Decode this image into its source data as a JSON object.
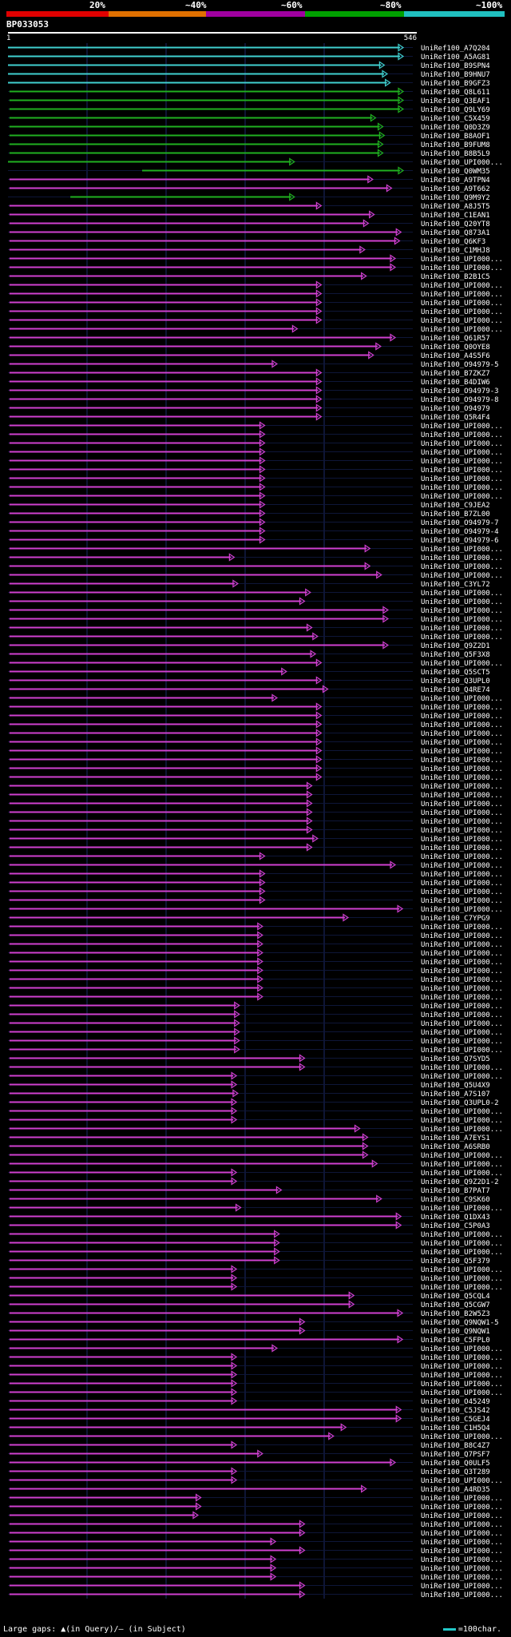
{
  "query_id": "BP033053",
  "ruler": {
    "start": "1",
    "end": "546"
  },
  "scale_labels": [
    "20%",
    "~40%",
    "~60%",
    "~80%",
    "~100%"
  ],
  "scale_colors": [
    "#e00000",
    "#e07000",
    "#a000a0",
    "#00a000",
    "#20c0c0"
  ],
  "max_length": 546,
  "colors": {
    "cyan": "#40d0d0",
    "green": "#20b020",
    "magenta": "#d040d0",
    "grid": "#1c2a6a"
  },
  "footer": {
    "gaps_text": "Large gaps: ▲(in Query)/– (in Subject)",
    "scale_text": "=100char."
  },
  "hits": [
    {
      "name": "UniRef100_A7Q204",
      "start": 1,
      "end": 546,
      "identity": "~100%"
    },
    {
      "name": "UniRef100_A5AG81",
      "start": 1,
      "end": 546,
      "identity": "~100%"
    },
    {
      "name": "UniRef100_B9SPN4",
      "start": 1,
      "end": 520,
      "identity": "~100%"
    },
    {
      "name": "UniRef100_B9HNU7",
      "start": 1,
      "end": 524,
      "identity": "~100%"
    },
    {
      "name": "UniRef100_B9GFZ3",
      "start": 1,
      "end": 528,
      "identity": "~100%"
    },
    {
      "name": "UniRef100_Q8L611",
      "start": 3,
      "end": 546,
      "identity": "~80%"
    },
    {
      "name": "UniRef100_Q3EAF1",
      "start": 3,
      "end": 546,
      "identity": "~80%"
    },
    {
      "name": "UniRef100_Q9LY69",
      "start": 3,
      "end": 546,
      "identity": "~80%"
    },
    {
      "name": "UniRef100_C5X459",
      "start": 3,
      "end": 508,
      "identity": "~80%"
    },
    {
      "name": "UniRef100_Q0D3Z9",
      "start": 3,
      "end": 518,
      "identity": "~80%"
    },
    {
      "name": "UniRef100_B8AOF1",
      "start": 3,
      "end": 520,
      "identity": "~80%"
    },
    {
      "name": "UniRef100_B9FUM8",
      "start": 3,
      "end": 518,
      "identity": "~80%"
    },
    {
      "name": "UniRef100_B8B5L9",
      "start": 3,
      "end": 518,
      "identity": "~80%"
    },
    {
      "name": "UniRef100_UPI000...",
      "start": 1,
      "end": 396,
      "identity": "~80%"
    },
    {
      "name": "UniRef100_Q0WM35",
      "start": 186,
      "end": 546,
      "identity": "~80%"
    },
    {
      "name": "UniRef100_A9TPN4",
      "start": 3,
      "end": 504,
      "identity": "~60%"
    },
    {
      "name": "UniRef100_A9T662",
      "start": 3,
      "end": 530,
      "identity": "~60%"
    },
    {
      "name": "UniRef100_Q9M9Y2",
      "start": 87,
      "end": 396,
      "identity": "~80%"
    },
    {
      "name": "UniRef100_A8J5T5",
      "start": 3,
      "end": 433,
      "identity": "~60%"
    },
    {
      "name": "UniRef100_C1EAN1",
      "start": 3,
      "end": 506,
      "identity": "~60%"
    },
    {
      "name": "UniRef100_Q20YT8",
      "start": 3,
      "end": 498,
      "identity": "~60%"
    },
    {
      "name": "UniRef100_Q873A1",
      "start": 3,
      "end": 543,
      "identity": "~60%"
    },
    {
      "name": "UniRef100_Q6KF3",
      "start": 3,
      "end": 541,
      "identity": "~60%"
    },
    {
      "name": "UniRef100_C1MHJ8",
      "start": 3,
      "end": 493,
      "identity": "~60%"
    },
    {
      "name": "UniRef100_UPI000...",
      "start": 3,
      "end": 535,
      "identity": "~60%"
    },
    {
      "name": "UniRef100_UPI000...",
      "start": 3,
      "end": 535,
      "identity": "~60%"
    },
    {
      "name": "UniRef100_B2B1C5",
      "start": 3,
      "end": 495,
      "identity": "~60%"
    },
    {
      "name": "UniRef100_UPI000...",
      "start": 3,
      "end": 433,
      "identity": "~60%"
    },
    {
      "name": "UniRef100_UPI000...",
      "start": 3,
      "end": 433,
      "identity": "~60%"
    },
    {
      "name": "UniRef100_UPI000...",
      "start": 3,
      "end": 433,
      "identity": "~60%"
    },
    {
      "name": "UniRef100_UPI000...",
      "start": 3,
      "end": 433,
      "identity": "~60%"
    },
    {
      "name": "UniRef100_UPI000...",
      "start": 3,
      "end": 433,
      "identity": "~60%"
    },
    {
      "name": "UniRef100_UPI000...",
      "start": 3,
      "end": 400,
      "identity": "~60%"
    },
    {
      "name": "UniRef100_Q61R57",
      "start": 3,
      "end": 535,
      "identity": "~60%"
    },
    {
      "name": "UniRef100_Q0OYE8",
      "start": 3,
      "end": 515,
      "identity": "~60%"
    },
    {
      "name": "UniRef100_A4S5F6",
      "start": 3,
      "end": 505,
      "identity": "~60%"
    },
    {
      "name": "UniRef100_O94979-5",
      "start": 3,
      "end": 372,
      "identity": "~60%"
    },
    {
      "name": "UniRef100_B7ZKZ7",
      "start": 3,
      "end": 433,
      "identity": "~60%"
    },
    {
      "name": "UniRef100_B4DIW6",
      "start": 3,
      "end": 433,
      "identity": "~60%"
    },
    {
      "name": "UniRef100_O94979-3",
      "start": 3,
      "end": 433,
      "identity": "~60%"
    },
    {
      "name": "UniRef100_O94979-8",
      "start": 3,
      "end": 433,
      "identity": "~60%"
    },
    {
      "name": "UniRef100_O94979",
      "start": 3,
      "end": 433,
      "identity": "~60%"
    },
    {
      "name": "UniRef100_Q5R4F4",
      "start": 3,
      "end": 433,
      "identity": "~60%"
    },
    {
      "name": "UniRef100_UPI000...",
      "start": 3,
      "end": 355,
      "identity": "~60%"
    },
    {
      "name": "UniRef100_UPI000...",
      "start": 3,
      "end": 355,
      "identity": "~60%"
    },
    {
      "name": "UniRef100_UPI000...",
      "start": 3,
      "end": 355,
      "identity": "~60%"
    },
    {
      "name": "UniRef100_UPI000...",
      "start": 3,
      "end": 355,
      "identity": "~60%"
    },
    {
      "name": "UniRef100_UPI000...",
      "start": 3,
      "end": 355,
      "identity": "~60%"
    },
    {
      "name": "UniRef100_UPI000...",
      "start": 3,
      "end": 355,
      "identity": "~60%"
    },
    {
      "name": "UniRef100_UPI000...",
      "start": 3,
      "end": 355,
      "identity": "~60%"
    },
    {
      "name": "UniRef100_UPI000...",
      "start": 3,
      "end": 355,
      "identity": "~60%"
    },
    {
      "name": "UniRef100_UPI000...",
      "start": 3,
      "end": 355,
      "identity": "~60%"
    },
    {
      "name": "UniRef100_C9JEA2",
      "start": 3,
      "end": 355,
      "identity": "~60%"
    },
    {
      "name": "UniRef100_B7ZL00",
      "start": 3,
      "end": 355,
      "identity": "~60%"
    },
    {
      "name": "UniRef100_O94979-7",
      "start": 3,
      "end": 355,
      "identity": "~60%"
    },
    {
      "name": "UniRef100_O94979-4",
      "start": 3,
      "end": 355,
      "identity": "~60%"
    },
    {
      "name": "UniRef100_O94979-6",
      "start": 3,
      "end": 355,
      "identity": "~60%"
    },
    {
      "name": "UniRef100_UPI000...",
      "start": 3,
      "end": 500,
      "identity": "~60%"
    },
    {
      "name": "UniRef100_UPI000...",
      "start": 3,
      "end": 313,
      "identity": "~60%"
    },
    {
      "name": "UniRef100_UPI000...",
      "start": 3,
      "end": 500,
      "identity": "~60%"
    },
    {
      "name": "UniRef100_UPI000...",
      "start": 3,
      "end": 516,
      "identity": "~60%"
    },
    {
      "name": "UniRef100_C3YL72",
      "start": 3,
      "end": 318,
      "identity": "~60%"
    },
    {
      "name": "UniRef100_UPI000...",
      "start": 3,
      "end": 418,
      "identity": "~60%"
    },
    {
      "name": "UniRef100_UPI000...",
      "start": 3,
      "end": 410,
      "identity": "~60%"
    },
    {
      "name": "UniRef100_UPI000...",
      "start": 3,
      "end": 525,
      "identity": "~60%"
    },
    {
      "name": "UniRef100_UPI000...",
      "start": 3,
      "end": 525,
      "identity": "~60%"
    },
    {
      "name": "UniRef100_UPI000...",
      "start": 3,
      "end": 420,
      "identity": "~60%"
    },
    {
      "name": "UniRef100_UPI000...",
      "start": 3,
      "end": 428,
      "identity": "~60%"
    },
    {
      "name": "UniRef100_Q9Z2D1",
      "start": 3,
      "end": 525,
      "identity": "~60%"
    },
    {
      "name": "UniRef100_Q5F3X8",
      "start": 3,
      "end": 425,
      "identity": "~60%"
    },
    {
      "name": "UniRef100_UPI000...",
      "start": 3,
      "end": 433,
      "identity": "~60%"
    },
    {
      "name": "UniRef100_Q5SCT5",
      "start": 3,
      "end": 385,
      "identity": "~60%"
    },
    {
      "name": "UniRef100_Q3UPL0",
      "start": 3,
      "end": 433,
      "identity": "~60%"
    },
    {
      "name": "UniRef100_Q4RE74",
      "start": 3,
      "end": 442,
      "identity": "~60%"
    },
    {
      "name": "UniRef100_UPI000...",
      "start": 3,
      "end": 372,
      "identity": "~60%"
    },
    {
      "name": "UniRef100_UPI000...",
      "start": 3,
      "end": 433,
      "identity": "~60%"
    },
    {
      "name": "UniRef100_UPI000...",
      "start": 3,
      "end": 433,
      "identity": "~60%"
    },
    {
      "name": "UniRef100_UPI000...",
      "start": 3,
      "end": 433,
      "identity": "~60%"
    },
    {
      "name": "UniRef100_UPI000...",
      "start": 3,
      "end": 433,
      "identity": "~60%"
    },
    {
      "name": "UniRef100_UPI000...",
      "start": 3,
      "end": 433,
      "identity": "~60%"
    },
    {
      "name": "UniRef100_UPI000...",
      "start": 3,
      "end": 433,
      "identity": "~60%"
    },
    {
      "name": "UniRef100_UPI000...",
      "start": 3,
      "end": 433,
      "identity": "~60%"
    },
    {
      "name": "UniRef100_UPI000...",
      "start": 3,
      "end": 433,
      "identity": "~60%"
    },
    {
      "name": "UniRef100_UPI000...",
      "start": 3,
      "end": 433,
      "identity": "~60%"
    },
    {
      "name": "UniRef100_UPI000...",
      "start": 3,
      "end": 420,
      "identity": "~60%"
    },
    {
      "name": "UniRef100_UPI000...",
      "start": 3,
      "end": 420,
      "identity": "~60%"
    },
    {
      "name": "UniRef100_UPI000...",
      "start": 3,
      "end": 420,
      "identity": "~60%"
    },
    {
      "name": "UniRef100_UPI000...",
      "start": 3,
      "end": 420,
      "identity": "~60%"
    },
    {
      "name": "UniRef100_UPI000...",
      "start": 3,
      "end": 420,
      "identity": "~60%"
    },
    {
      "name": "UniRef100_UPI000...",
      "start": 3,
      "end": 420,
      "identity": "~60%"
    },
    {
      "name": "UniRef100_UPI000...",
      "start": 3,
      "end": 428,
      "identity": "~60%"
    },
    {
      "name": "UniRef100_UPI000...",
      "start": 3,
      "end": 420,
      "identity": "~60%"
    },
    {
      "name": "UniRef100_UPI000...",
      "start": 3,
      "end": 355,
      "identity": "~60%"
    },
    {
      "name": "UniRef100_UPI000...",
      "start": 3,
      "end": 535,
      "identity": "~60%"
    },
    {
      "name": "UniRef100_UPI000...",
      "start": 3,
      "end": 355,
      "identity": "~60%"
    },
    {
      "name": "UniRef100_UPI000...",
      "start": 3,
      "end": 355,
      "identity": "~60%"
    },
    {
      "name": "UniRef100_UPI000...",
      "start": 3,
      "end": 355,
      "identity": "~60%"
    },
    {
      "name": "UniRef100_UPI000...",
      "start": 3,
      "end": 355,
      "identity": "~60%"
    },
    {
      "name": "UniRef100_UPI000...",
      "start": 3,
      "end": 545,
      "identity": "~60%"
    },
    {
      "name": "UniRef100_C7YPG9",
      "start": 3,
      "end": 470,
      "identity": "~60%"
    },
    {
      "name": "UniRef100_UPI000...",
      "start": 3,
      "end": 352,
      "identity": "~60%"
    },
    {
      "name": "UniRef100_UPI000...",
      "start": 3,
      "end": 352,
      "identity": "~60%"
    },
    {
      "name": "UniRef100_UPI000...",
      "start": 3,
      "end": 352,
      "identity": "~60%"
    },
    {
      "name": "UniRef100_UPI000...",
      "start": 3,
      "end": 352,
      "identity": "~60%"
    },
    {
      "name": "UniRef100_UPI000...",
      "start": 3,
      "end": 352,
      "identity": "~60%"
    },
    {
      "name": "UniRef100_UPI000...",
      "start": 3,
      "end": 352,
      "identity": "~60%"
    },
    {
      "name": "UniRef100_UPI000...",
      "start": 3,
      "end": 352,
      "identity": "~60%"
    },
    {
      "name": "UniRef100_UPI000...",
      "start": 3,
      "end": 352,
      "identity": "~60%"
    },
    {
      "name": "UniRef100_UPI000...",
      "start": 3,
      "end": 352,
      "identity": "~60%"
    },
    {
      "name": "UniRef100_UPI000...",
      "start": 3,
      "end": 320,
      "identity": "~60%"
    },
    {
      "name": "UniRef100_UPI000...",
      "start": 3,
      "end": 320,
      "identity": "~60%"
    },
    {
      "name": "UniRef100_UPI000...",
      "start": 3,
      "end": 320,
      "identity": "~60%"
    },
    {
      "name": "UniRef100_UPI000...",
      "start": 3,
      "end": 320,
      "identity": "~60%"
    },
    {
      "name": "UniRef100_UPI000...",
      "start": 3,
      "end": 320,
      "identity": "~60%"
    },
    {
      "name": "UniRef100_UPI000...",
      "start": 3,
      "end": 320,
      "identity": "~60%"
    },
    {
      "name": "UniRef100_Q7SYD5",
      "start": 3,
      "end": 410,
      "identity": "~60%"
    },
    {
      "name": "UniRef100_UPI000...",
      "start": 3,
      "end": 410,
      "identity": "~60%"
    },
    {
      "name": "UniRef100_UPI000...",
      "start": 3,
      "end": 316,
      "identity": "~60%"
    },
    {
      "name": "UniRef100_Q5U4X9",
      "start": 3,
      "end": 316,
      "identity": "~60%"
    },
    {
      "name": "UniRef100_A7S107",
      "start": 3,
      "end": 318,
      "identity": "~60%"
    },
    {
      "name": "UniRef100_Q3UPL0-2",
      "start": 3,
      "end": 316,
      "identity": "~60%"
    },
    {
      "name": "UniRef100_UPI000...",
      "start": 3,
      "end": 316,
      "identity": "~60%"
    },
    {
      "name": "UniRef100_UPI000...",
      "start": 3,
      "end": 316,
      "identity": "~60%"
    },
    {
      "name": "UniRef100_UPI000...",
      "start": 3,
      "end": 486,
      "identity": "~60%"
    },
    {
      "name": "UniRef100_A7EYS1",
      "start": 3,
      "end": 497,
      "identity": "~60%"
    },
    {
      "name": "UniRef100_A6SRB0",
      "start": 3,
      "end": 497,
      "identity": "~60%"
    },
    {
      "name": "UniRef100_UPI000...",
      "start": 3,
      "end": 497,
      "identity": "~60%"
    },
    {
      "name": "UniRef100_UPI000...",
      "start": 3,
      "end": 510,
      "identity": "~60%"
    },
    {
      "name": "UniRef100_UPI000...",
      "start": 3,
      "end": 316,
      "identity": "~60%"
    },
    {
      "name": "UniRef100_Q9Z2D1-2",
      "start": 3,
      "end": 316,
      "identity": "~60%"
    },
    {
      "name": "UniRef100_B7PAT7",
      "start": 3,
      "end": 378,
      "identity": "~60%"
    },
    {
      "name": "UniRef100_C9SK60",
      "start": 3,
      "end": 516,
      "identity": "~60%"
    },
    {
      "name": "UniRef100_UPI000...",
      "start": 3,
      "end": 322,
      "identity": "~60%"
    },
    {
      "name": "UniRef100_Q1DX43",
      "start": 3,
      "end": 543,
      "identity": "~60%"
    },
    {
      "name": "UniRef100_C5P0A3",
      "start": 3,
      "end": 543,
      "identity": "~60%"
    },
    {
      "name": "UniRef100_UPI000...",
      "start": 3,
      "end": 375,
      "identity": "~60%"
    },
    {
      "name": "UniRef100_UPI000...",
      "start": 3,
      "end": 375,
      "identity": "~60%"
    },
    {
      "name": "UniRef100_UPI000...",
      "start": 3,
      "end": 375,
      "identity": "~60%"
    },
    {
      "name": "UniRef100_Q5F379",
      "start": 3,
      "end": 375,
      "identity": "~60%"
    },
    {
      "name": "UniRef100_UPI000...",
      "start": 3,
      "end": 316,
      "identity": "~60%"
    },
    {
      "name": "UniRef100_UPI000...",
      "start": 3,
      "end": 316,
      "identity": "~60%"
    },
    {
      "name": "UniRef100_UPI000...",
      "start": 3,
      "end": 316,
      "identity": "~60%"
    },
    {
      "name": "UniRef100_Q5CQL4",
      "start": 3,
      "end": 478,
      "identity": "~60%"
    },
    {
      "name": "UniRef100_Q5CGW7",
      "start": 3,
      "end": 478,
      "identity": "~60%"
    },
    {
      "name": "UniRef100_B2W5Z3",
      "start": 3,
      "end": 545,
      "identity": "~60%"
    },
    {
      "name": "UniRef100_Q9NQW1-5",
      "start": 3,
      "end": 410,
      "identity": "~60%"
    },
    {
      "name": "UniRef100_Q9NQW1",
      "start": 3,
      "end": 410,
      "identity": "~60%"
    },
    {
      "name": "UniRef100_C5FPL0",
      "start": 3,
      "end": 545,
      "identity": "~60%"
    },
    {
      "name": "UniRef100_UPI000...",
      "start": 3,
      "end": 372,
      "identity": "~60%"
    },
    {
      "name": "UniRef100_UPI000...",
      "start": 3,
      "end": 316,
      "identity": "~60%"
    },
    {
      "name": "UniRef100_UPI000...",
      "start": 3,
      "end": 316,
      "identity": "~60%"
    },
    {
      "name": "UniRef100_UPI000...",
      "start": 3,
      "end": 316,
      "identity": "~60%"
    },
    {
      "name": "UniRef100_UPI000...",
      "start": 3,
      "end": 316,
      "identity": "~60%"
    },
    {
      "name": "UniRef100_UPI000...",
      "start": 3,
      "end": 316,
      "identity": "~60%"
    },
    {
      "name": "UniRef100_O45249",
      "start": 3,
      "end": 316,
      "identity": "~60%"
    },
    {
      "name": "UniRef100_C5JS42",
      "start": 3,
      "end": 543,
      "identity": "~60%"
    },
    {
      "name": "UniRef100_C5GEJ4",
      "start": 3,
      "end": 543,
      "identity": "~60%"
    },
    {
      "name": "UniRef100_C1H5Q4",
      "start": 3,
      "end": 467,
      "identity": "~60%"
    },
    {
      "name": "UniRef100_UPI000...",
      "start": 3,
      "end": 450,
      "identity": "~60%"
    },
    {
      "name": "UniRef100_B8C4Z7",
      "start": 3,
      "end": 316,
      "identity": "~60%"
    },
    {
      "name": "UniRef100_Q7PSF7",
      "start": 3,
      "end": 352,
      "identity": "~60%"
    },
    {
      "name": "UniRef100_Q0ULF5",
      "start": 3,
      "end": 535,
      "identity": "~60%"
    },
    {
      "name": "UniRef100_Q3T289",
      "start": 3,
      "end": 316,
      "identity": "~60%"
    },
    {
      "name": "UniRef100_UPI000...",
      "start": 3,
      "end": 316,
      "identity": "~60%"
    },
    {
      "name": "UniRef100_A4RD35",
      "start": 3,
      "end": 495,
      "identity": "~60%"
    },
    {
      "name": "UniRef100_UPI000...",
      "start": 3,
      "end": 267,
      "identity": "~60%"
    },
    {
      "name": "UniRef100_UPI000...",
      "start": 3,
      "end": 267,
      "identity": "~60%"
    },
    {
      "name": "UniRef100_UPI000...",
      "start": 3,
      "end": 263,
      "identity": "~60%"
    },
    {
      "name": "UniRef100_UPI000...",
      "start": 3,
      "end": 410,
      "identity": "~60%"
    },
    {
      "name": "UniRef100_UPI000...",
      "start": 3,
      "end": 410,
      "identity": "~60%"
    },
    {
      "name": "UniRef100_UPI000...",
      "start": 3,
      "end": 370,
      "identity": "~60%"
    },
    {
      "name": "UniRef100_UPI000...",
      "start": 3,
      "end": 410,
      "identity": "~60%"
    },
    {
      "name": "UniRef100_UPI000...",
      "start": 3,
      "end": 370,
      "identity": "~60%"
    },
    {
      "name": "UniRef100_UPI000...",
      "start": 3,
      "end": 370,
      "identity": "~60%"
    },
    {
      "name": "UniRef100_UPI000...",
      "start": 3,
      "end": 370,
      "identity": "~60%"
    },
    {
      "name": "UniRef100_UPI000...",
      "start": 3,
      "end": 410,
      "identity": "~60%"
    },
    {
      "name": "UniRef100_UPI000...",
      "start": 3,
      "end": 410,
      "identity": "~60%"
    }
  ]
}
